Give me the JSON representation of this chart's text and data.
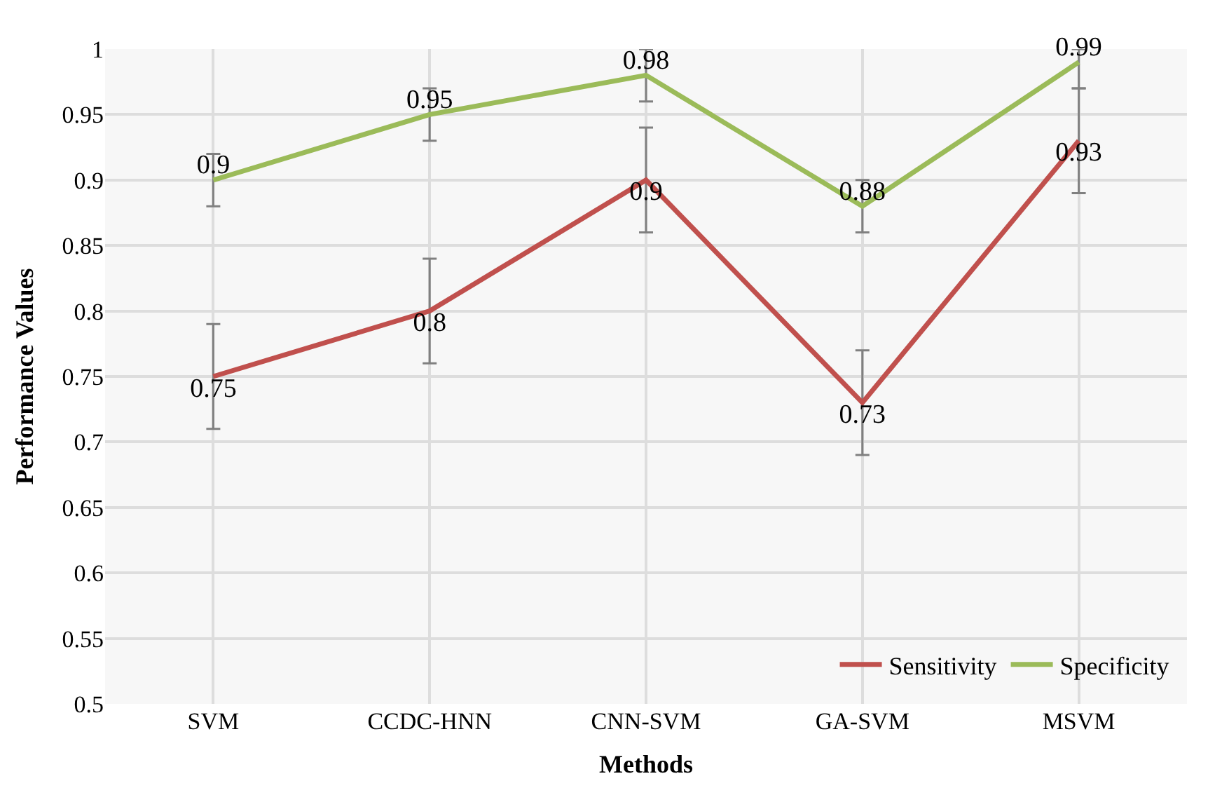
{
  "chart_data": {
    "type": "line",
    "xlabel": "Methods",
    "ylabel": "Performance Values",
    "categories": [
      "SVM",
      "CCDC-HNN",
      "CNN-SVM",
      "GA-SVM",
      "MSVM"
    ],
    "series": [
      {
        "name": "Sensitivity",
        "color": "#c0504d",
        "values": [
          0.75,
          0.8,
          0.9,
          0.73,
          0.93
        ],
        "errors": [
          0.04,
          0.04,
          0.04,
          0.04,
          0.04
        ]
      },
      {
        "name": "Specificity",
        "color": "#9bbb59",
        "values": [
          0.9,
          0.95,
          0.98,
          0.88,
          0.99
        ],
        "errors": [
          0.02,
          0.02,
          0.02,
          0.02,
          [
            0.97,
            1.0
          ]
        ]
      }
    ],
    "ylim": [
      0.5,
      1
    ],
    "yticks": [
      0.5,
      0.55,
      0.6,
      0.65,
      0.7,
      0.75,
      0.8,
      0.85,
      0.9,
      0.95,
      1
    ],
    "grid": true,
    "legend": "bottom right",
    "data_labels": true,
    "marker": "none",
    "line_style": "solid"
  }
}
